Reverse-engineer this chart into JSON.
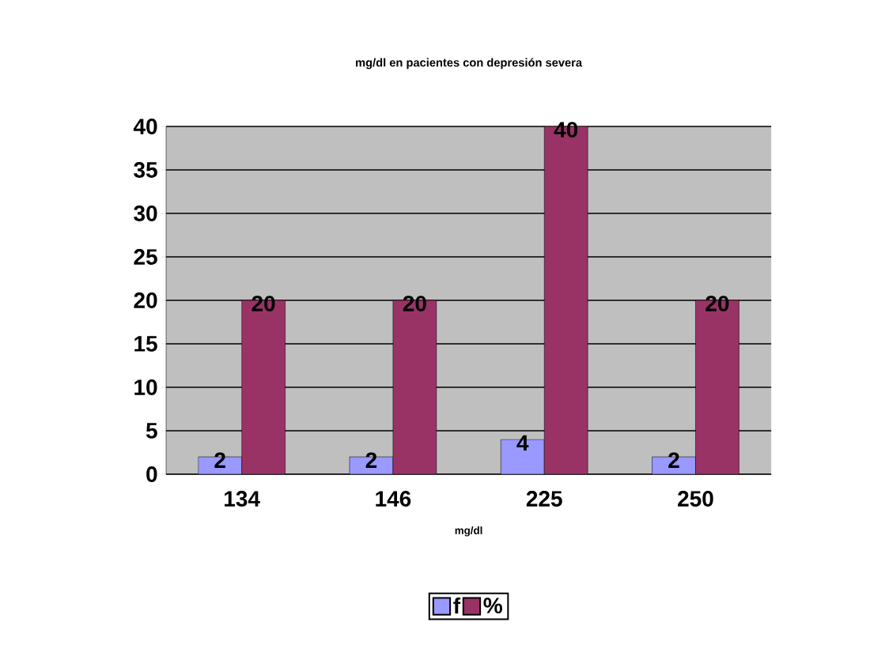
{
  "chart_data": {
    "type": "bar",
    "title": "mg/dl en pacientes con depresión severa",
    "xlabel": "mg/dl",
    "categories": [
      "134",
      "146",
      "225",
      "250"
    ],
    "series": [
      {
        "name": "f",
        "color": "#9999ff",
        "values": [
          2,
          2,
          4,
          2
        ]
      },
      {
        "name": "%",
        "color": "#993366",
        "values": [
          20,
          20,
          40,
          20
        ]
      }
    ],
    "ylim": [
      0,
      40
    ],
    "yticks": [
      0,
      5,
      10,
      15,
      20,
      25,
      30,
      35,
      40
    ],
    "grid": "y",
    "legend": "bottom",
    "data_labels": true
  }
}
